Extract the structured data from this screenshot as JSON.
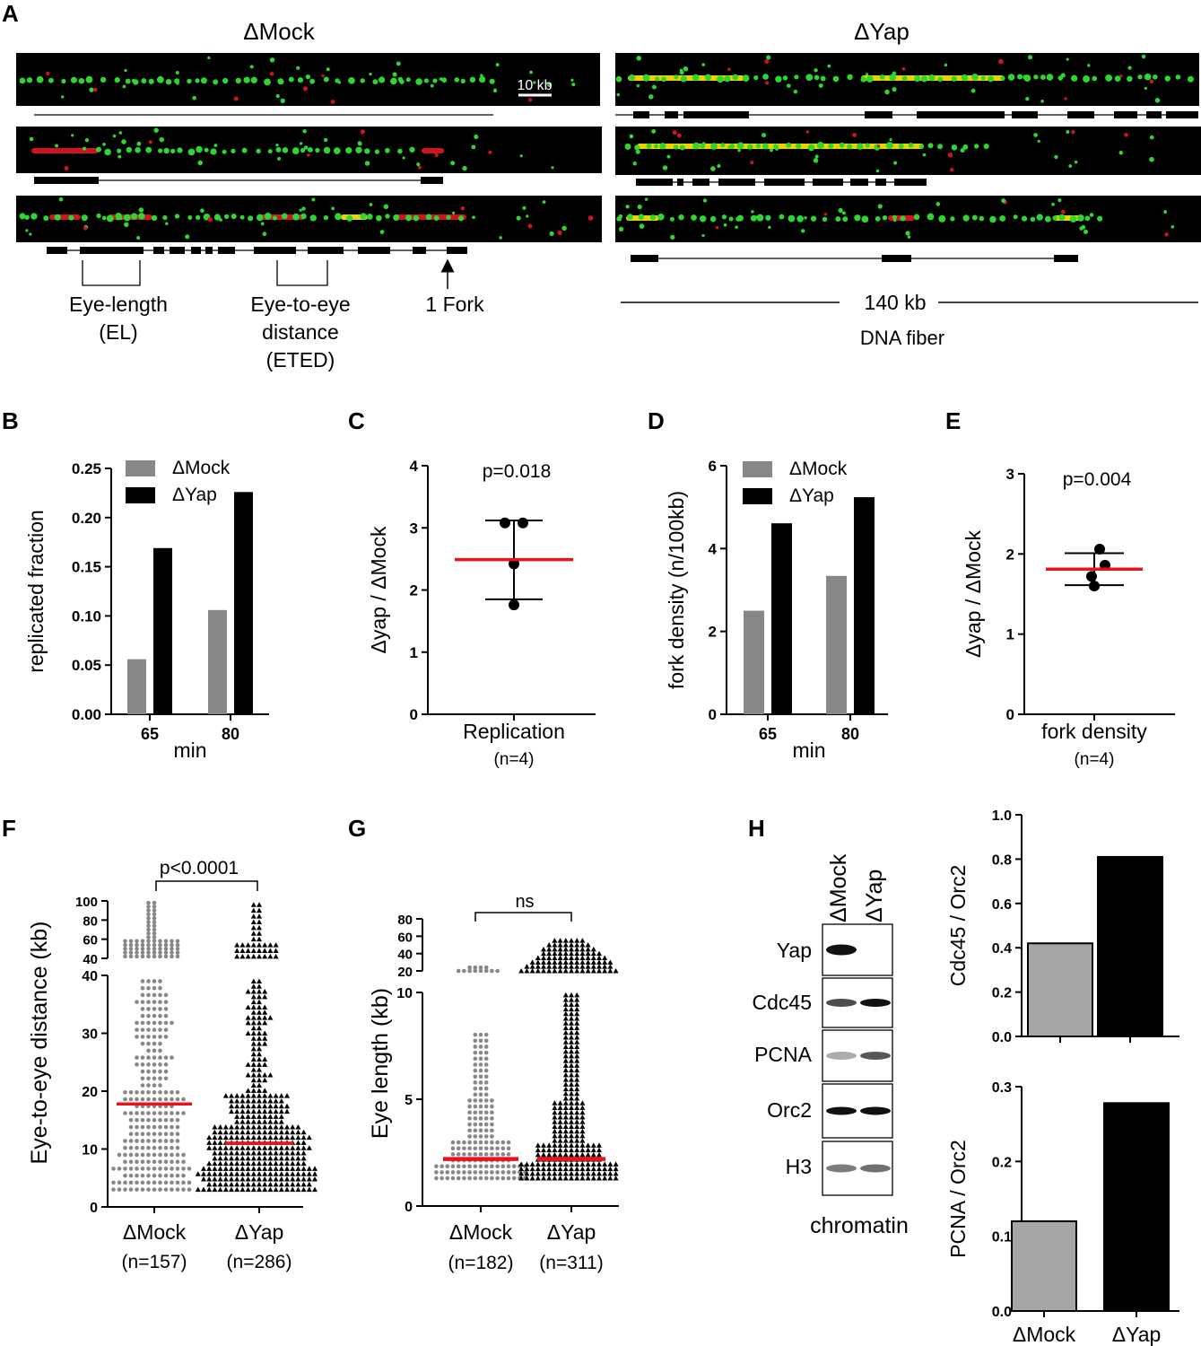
{
  "panel_letters": {
    "a": "A",
    "b": "B",
    "c": "C",
    "d": "D",
    "e": "E",
    "f": "F",
    "g": "G",
    "h": "H"
  },
  "colors": {
    "mock": "#878787",
    "yap": "#000000",
    "red": "#e8141c",
    "h_mock": "#a6a6a6"
  },
  "panelA": {
    "mock_title": "ΔMock",
    "yap_title": "ΔYap",
    "scale_label": "10 kb",
    "eye_length": [
      "Eye-length",
      "(EL)"
    ],
    "eted": [
      "Eye-to-eye",
      "distance",
      "(ETED)"
    ],
    "fork": "1 Fork",
    "kb140": "140 kb",
    "dna_fiber": "DNA fiber"
  },
  "chart_data": [
    {
      "id": "B",
      "type": "bar",
      "ylabel": "replicated fraction",
      "xlabel": "min",
      "categories": [
        "65",
        "80"
      ],
      "ylim": [
        0,
        0.25
      ],
      "yticks": [
        "0.00",
        "0.05",
        "0.10",
        "0.15",
        "0.20",
        "0.25"
      ],
      "legend": "top-left",
      "series": [
        {
          "name": "ΔMock",
          "color": "#878787",
          "values": [
            0.056,
            0.106
          ]
        },
        {
          "name": "ΔYap",
          "color": "#000000",
          "values": [
            0.169,
            0.226
          ]
        }
      ]
    },
    {
      "id": "C",
      "type": "scatter",
      "ylabel": "Δyap / ΔMock",
      "category": "Replication",
      "n_label": "(n=4)",
      "pvalue": "p=0.018",
      "ylim": [
        0,
        4
      ],
      "yticks": [
        "0",
        "1",
        "2",
        "3",
        "4"
      ],
      "points": [
        3.08,
        3.08,
        2.42,
        1.76
      ],
      "mean": 2.49,
      "sd_upper": 3.12,
      "sd_lower": 1.85
    },
    {
      "id": "D",
      "type": "bar",
      "ylabel": "fork density (n/100kb)",
      "xlabel": "min",
      "categories": [
        "65",
        "80"
      ],
      "ylim": [
        0,
        6
      ],
      "yticks": [
        "0",
        "2",
        "4",
        "6"
      ],
      "legend": "top-left",
      "series": [
        {
          "name": "ΔMock",
          "color": "#878787",
          "values": [
            2.5,
            3.34
          ]
        },
        {
          "name": "ΔYap",
          "color": "#000000",
          "values": [
            4.61,
            5.24
          ]
        }
      ]
    },
    {
      "id": "E",
      "type": "scatter",
      "ylabel": "Δyap / ΔMock",
      "category": "fork density",
      "n_label": "(n=4)",
      "pvalue": "p=0.004",
      "ylim": [
        0,
        3
      ],
      "yticks": [
        "0",
        "1",
        "2",
        "3"
      ],
      "points": [
        2.06,
        1.86,
        1.72,
        1.6
      ],
      "mean": 1.81,
      "sd_upper": 2.01,
      "sd_lower": 1.61
    },
    {
      "id": "F",
      "type": "scatter",
      "ylabel": "Eye-to-eye distance (kb)",
      "categories": [
        "ΔMock",
        "ΔYap"
      ],
      "n_labels": [
        "(n=157)",
        "(n=286)"
      ],
      "pvalue": "p<0.0001",
      "ylim_lower": [
        0,
        40
      ],
      "yticks_lower": [
        "0",
        "10",
        "20",
        "30",
        "40"
      ],
      "ylim_upper": [
        40,
        100
      ],
      "yticks_upper": [
        "40",
        "60",
        "80",
        "100"
      ],
      "medians": [
        17.8,
        11.0
      ]
    },
    {
      "id": "G",
      "type": "scatter",
      "ylabel": "Eye length (kb)",
      "categories": [
        "ΔMock",
        "ΔYap"
      ],
      "n_labels": [
        "(n=182)",
        "(n=311)"
      ],
      "pvalue": "ns",
      "ylim_lower": [
        0,
        10
      ],
      "yticks_lower": [
        "0",
        "5",
        "10"
      ],
      "ylim_upper": [
        20,
        80
      ],
      "yticks_upper": [
        "20",
        "40",
        "60",
        "80"
      ],
      "medians": [
        2.2,
        2.2
      ]
    },
    {
      "id": "H1",
      "type": "bar",
      "ylabel": "Cdc45 / Orc2",
      "categories": [
        "ΔMock",
        "ΔYap"
      ],
      "ylim": [
        0,
        1.0
      ],
      "yticks": [
        "0.0",
        "0.2",
        "0.4",
        "0.6",
        "0.8",
        "1.0"
      ],
      "values": [
        0.42,
        0.81
      ]
    },
    {
      "id": "H2",
      "type": "bar",
      "ylabel": "PCNA / Orc2",
      "categories": [
        "ΔMock",
        "ΔYap"
      ],
      "ylim": [
        0,
        0.3
      ],
      "yticks": [
        "0.0",
        "0.1",
        "0.2",
        "0.3"
      ],
      "values": [
        0.12,
        0.278
      ]
    }
  ],
  "panelH": {
    "lanes": [
      "ΔMock",
      "ΔYap"
    ],
    "rows": [
      "Yap",
      "Cdc45",
      "PCNA",
      "Orc2",
      "H3"
    ],
    "footer": "chromatin"
  }
}
